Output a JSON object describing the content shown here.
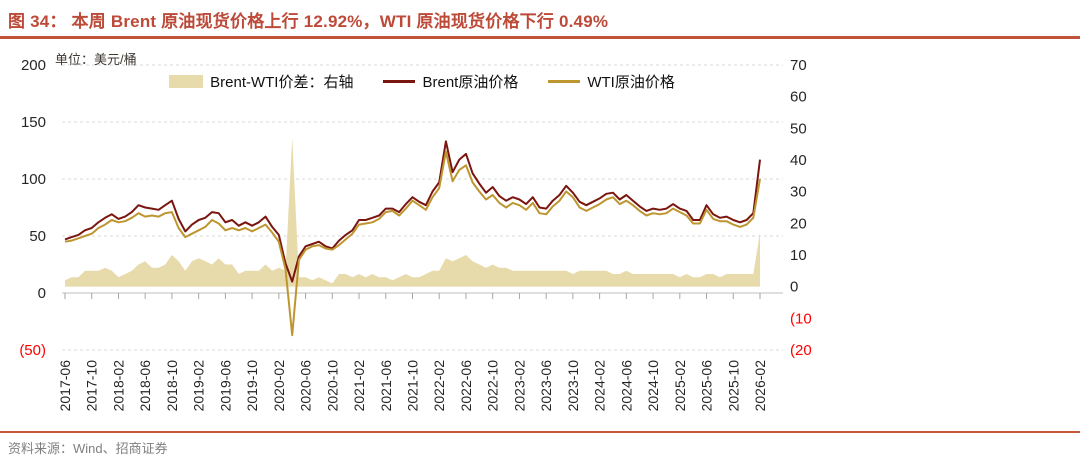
{
  "title": {
    "text": "图 34：  本周 Brent 原油现货价格上行 12.92%，WTI 原油现货价格下行 0.49%"
  },
  "unit_label": "单位：美元/桶",
  "legend": [
    {
      "label": "Brent-WTI价差：右轴",
      "type": "area",
      "color": "#E7DAAB"
    },
    {
      "label": "Brent原油价格",
      "type": "line",
      "color": "#7A150F"
    },
    {
      "label": "WTI原油价格",
      "type": "line",
      "color": "#BE9630"
    }
  ],
  "footer": {
    "source": "资料来源：Wind、招商证券"
  },
  "colors": {
    "title_red": "#BD4A38",
    "rule_red": "#C0523A",
    "negative_label_red": "#FF0000",
    "gridline": "#D9D9D9",
    "axis_line": "#BFBFBF",
    "tick_mark": "#A6A6A6",
    "axis_text": "#262626",
    "area_fill": "#E7DAAB",
    "brent_line": "#7A150F",
    "wti_line": "#BE9630"
  },
  "chart_data": {
    "type": "line",
    "title": "本周 Brent 原油现货价格上行 12.92%，WTI 原油现货价格下行 0.49%",
    "unit": "美元/桶",
    "x_start": "2017-06",
    "x_interval_months": 1,
    "x_tick_labels": [
      "2017-06",
      "2017-10",
      "2018-02",
      "2018-06",
      "2018-10",
      "2019-02",
      "2019-06",
      "2019-10",
      "2020-02",
      "2020-06",
      "2020-10",
      "2021-02",
      "2021-06",
      "2021-10",
      "2022-02",
      "2022-06",
      "2022-10",
      "2023-02",
      "2023-06",
      "2023-10",
      "2024-02",
      "2024-06",
      "2024-10",
      "2025-02",
      "2025-06",
      "2025-10",
      "2026-02"
    ],
    "x_tick_step": 4,
    "left_axis": {
      "range": [
        -50,
        200
      ],
      "ticks": [
        {
          "v": 200,
          "label": "200"
        },
        {
          "v": 150,
          "label": "150"
        },
        {
          "v": 100,
          "label": "100"
        },
        {
          "v": 50,
          "label": "50"
        },
        {
          "v": 0,
          "label": "0"
        },
        {
          "v": -50,
          "label": "(50)",
          "negative": true
        }
      ]
    },
    "right_axis": {
      "range": [
        -20,
        70
      ],
      "ticks": [
        {
          "v": 70,
          "label": "70"
        },
        {
          "v": 60,
          "label": "60"
        },
        {
          "v": 50,
          "label": "50"
        },
        {
          "v": 40,
          "label": "40"
        },
        {
          "v": 30,
          "label": "30"
        },
        {
          "v": 20,
          "label": "20"
        },
        {
          "v": 10,
          "label": "10"
        },
        {
          "v": 0,
          "label": "0"
        },
        {
          "v": -10,
          "label": "(10",
          "negative": true
        },
        {
          "v": -20,
          "label": "(20",
          "negative": true
        }
      ]
    },
    "series": [
      {
        "name": "Brent原油价格",
        "axis": "left",
        "style": "line",
        "color": "#7A150F",
        "values": [
          47,
          49,
          51,
          55,
          57,
          62,
          66,
          69,
          65,
          67,
          71,
          77,
          75,
          74,
          73,
          77,
          81,
          65,
          54,
          60,
          64,
          66,
          71,
          70,
          62,
          64,
          59,
          62,
          59,
          62,
          67,
          58,
          51,
          26,
          10,
          32,
          41,
          43,
          45,
          41,
          39,
          46,
          51,
          55,
          64,
          64,
          66,
          68,
          74,
          74,
          71,
          78,
          84,
          80,
          77,
          89,
          97,
          133,
          106,
          117,
          122,
          105,
          96,
          88,
          93,
          85,
          81,
          84,
          82,
          78,
          84,
          75,
          74,
          81,
          86,
          94,
          88,
          80,
          77,
          80,
          83,
          87,
          88,
          82,
          86,
          81,
          76,
          72,
          74,
          73,
          74,
          78,
          74,
          72,
          64,
          64,
          77,
          69,
          66,
          67,
          64,
          62,
          64,
          70,
          117
        ]
      },
      {
        "name": "WTI原油价格",
        "axis": "left",
        "style": "line",
        "color": "#BE9630",
        "values": [
          45,
          46,
          48,
          50,
          52,
          57,
          60,
          64,
          62,
          63,
          66,
          70,
          67,
          68,
          67,
          70,
          71,
          57,
          49,
          52,
          55,
          58,
          64,
          61,
          55,
          57,
          55,
          57,
          54,
          57,
          60,
          53,
          45,
          21,
          -37,
          29,
          38,
          41,
          42,
          39,
          38,
          42,
          47,
          52,
          60,
          61,
          62,
          65,
          71,
          72,
          68,
          74,
          81,
          77,
          73,
          84,
          92,
          124,
          98,
          108,
          112,
          97,
          89,
          82,
          86,
          79,
          75,
          79,
          77,
          73,
          79,
          70,
          69,
          76,
          81,
          89,
          84,
          75,
          72,
          75,
          78,
          82,
          84,
          78,
          81,
          77,
          72,
          68,
          70,
          69,
          70,
          74,
          71,
          68,
          61,
          61,
          73,
          65,
          63,
          63,
          60,
          58,
          60,
          66,
          100
        ]
      },
      {
        "name": "Brent-WTI价差：右轴",
        "axis": "right",
        "style": "area",
        "color": "#E7DAAB",
        "values": [
          2,
          3,
          3,
          5,
          5,
          5,
          6,
          5,
          3,
          4,
          5,
          7,
          8,
          6,
          6,
          7,
          10,
          8,
          5,
          8,
          9,
          8,
          7,
          9,
          7,
          7,
          4,
          5,
          5,
          5,
          7,
          5,
          6,
          5,
          47,
          3,
          3,
          2,
          3,
          2,
          1,
          4,
          4,
          3,
          4,
          3,
          4,
          3,
          3,
          2,
          3,
          4,
          3,
          3,
          4,
          5,
          5,
          9,
          8,
          9,
          10,
          8,
          7,
          6,
          7,
          6,
          6,
          5,
          5,
          5,
          5,
          5,
          5,
          5,
          5,
          5,
          4,
          5,
          5,
          5,
          5,
          5,
          4,
          4,
          5,
          4,
          4,
          4,
          4,
          4,
          4,
          4,
          3,
          4,
          3,
          3,
          4,
          4,
          3,
          4,
          4,
          4,
          4,
          4,
          17
        ]
      }
    ],
    "grid": "dashed horizontal at left-axis ticks",
    "legend_position": "top-center"
  }
}
